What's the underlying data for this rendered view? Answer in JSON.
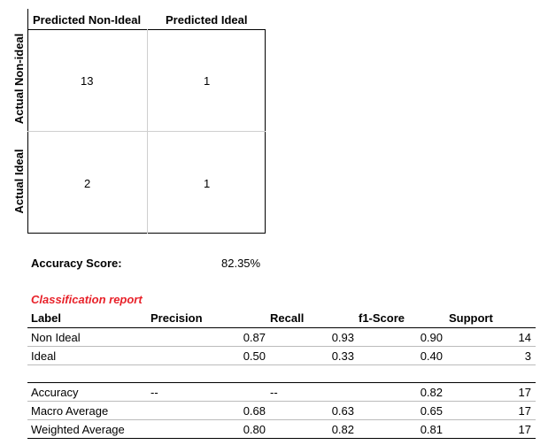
{
  "matrix": {
    "col_labels": [
      "Predicted Non-Ideal",
      "Predicted Ideal"
    ],
    "row_labels": [
      "Actual Non-ideal",
      "Actual Ideal"
    ],
    "cells": [
      [
        "13",
        "1"
      ],
      [
        "2",
        "1"
      ]
    ]
  },
  "accuracy": {
    "label": "Accuracy Score:",
    "value": "82.35%"
  },
  "report": {
    "title": "Classification report",
    "headers": [
      "Label",
      "Precision",
      "Recall",
      "f1-Score",
      "Support"
    ],
    "rows": [
      [
        "Non Ideal",
        "0.87",
        "0.93",
        "0.90",
        "14"
      ],
      [
        "Ideal",
        "0.50",
        "0.33",
        "0.40",
        "3"
      ],
      [
        "Accuracy",
        "--",
        "--",
        "0.82",
        "17"
      ],
      [
        "Macro Average",
        "0.68",
        "0.63",
        "0.65",
        "17"
      ],
      [
        "Weighted Average",
        "0.80",
        "0.82",
        "0.81",
        "17"
      ]
    ]
  }
}
